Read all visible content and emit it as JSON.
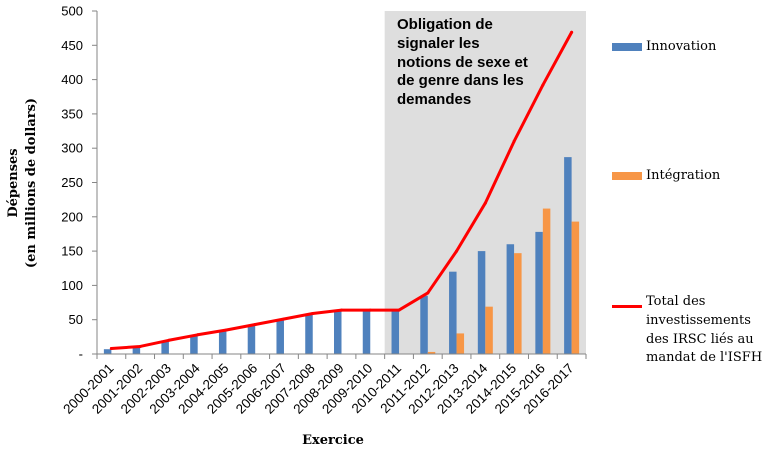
{
  "chart_data": {
    "type": "bar",
    "xlabel": "Exercice",
    "ylabel": "Dépenses\n(en millions de dollars)",
    "ylim": [
      0,
      500
    ],
    "yticks": [
      0,
      50,
      100,
      150,
      200,
      250,
      300,
      350,
      400,
      450,
      500
    ],
    "ytick_labels": [
      "-",
      "50",
      "100",
      "150",
      "200",
      "250",
      "300",
      "350",
      "400",
      "450",
      "500"
    ],
    "categories": [
      "2000-2001",
      "2001-2002",
      "2002-2003",
      "2003-2004",
      "2004-2005",
      "2005-2006",
      "2006-2007",
      "2007-2008",
      "2008-2009",
      "2009-2010",
      "2010-2011",
      "2011-2012",
      "2012-2013",
      "2013-2014",
      "2014-2015",
      "2015-2016",
      "2016-2017"
    ],
    "series": [
      {
        "name": "Innovation",
        "type": "bar",
        "color": "#4f81bd",
        "values": [
          7,
          10,
          18,
          26,
          33,
          42,
          50,
          58,
          62,
          62,
          62,
          85,
          120,
          150,
          160,
          178,
          287
        ]
      },
      {
        "name": "Intégration",
        "type": "bar",
        "color": "#f79646",
        "values": [
          0,
          0,
          0,
          0,
          0,
          0,
          0,
          0,
          0,
          0,
          0,
          3,
          30,
          69,
          147,
          212,
          193
        ]
      },
      {
        "name": "Total des\ninvestissements\ndes IRSC liés au\nmandat de l'ISFH",
        "type": "line",
        "color": "#ff0000",
        "values": [
          8,
          11,
          20,
          28,
          35,
          43,
          51,
          59,
          64,
          64,
          64,
          89,
          150,
          220,
          310,
          392,
          469
        ]
      }
    ],
    "shaded_region": {
      "from": "2010-2011",
      "to": "2016-2017",
      "color": "#dedede",
      "label": "Obligation de\nsignaler les\nnotions de sexe et\nde genre dans les\ndemandes"
    },
    "axis_color": "#868686",
    "legend_position": "right",
    "grid": false
  }
}
